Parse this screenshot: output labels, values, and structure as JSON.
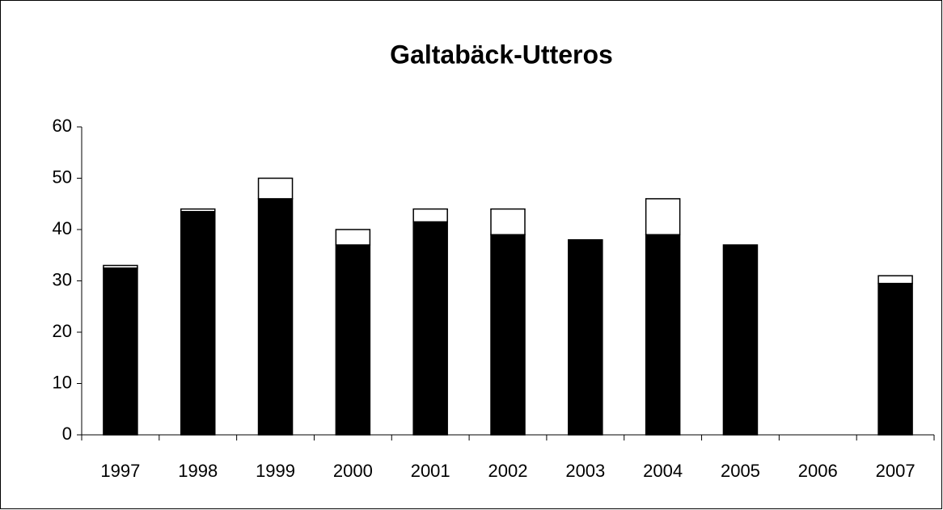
{
  "chart_data": {
    "type": "bar",
    "stacked": true,
    "title": "Galtabäck-Utteros",
    "categories": [
      "1997",
      "1998",
      "1999",
      "2000",
      "2001",
      "2002",
      "2003",
      "2004",
      "2005",
      "2006",
      "2007"
    ],
    "series": [
      {
        "color": "#000000",
        "values": [
          32.5,
          43.5,
          46,
          37,
          41.5,
          39,
          38,
          39,
          37,
          0,
          29.5
        ]
      },
      {
        "color": "#ffffff",
        "values": [
          0.5,
          0.5,
          4,
          3,
          2.5,
          5,
          0,
          7,
          0,
          0,
          1.5
        ]
      }
    ],
    "ylim": [
      0,
      60
    ],
    "yticks": [
      0,
      10,
      20,
      30,
      40,
      50,
      60
    ],
    "grid": false
  }
}
